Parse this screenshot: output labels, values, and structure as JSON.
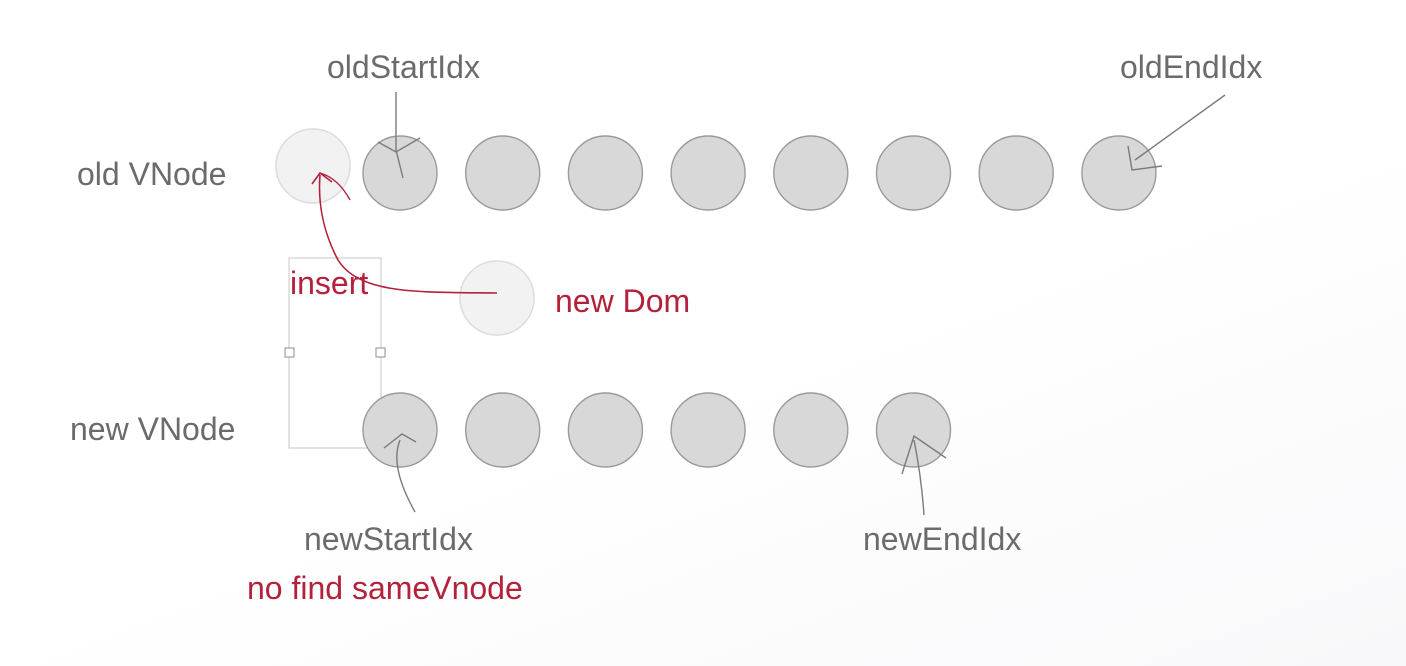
{
  "labels": {
    "old_vnode": "old VNode",
    "new_vnode": "new VNode",
    "old_start_idx": "oldStartIdx",
    "old_end_idx": "oldEndIdx",
    "new_start_idx": "newStartIdx",
    "new_end_idx": "newEndIdx",
    "insert": "insert",
    "new_dom": "new Dom",
    "no_find": "no find sameVnode"
  },
  "old_vnodes": {
    "count": 8
  },
  "new_vnodes": {
    "count": 6
  },
  "colors": {
    "node_fill": "#d8d8d8",
    "node_stroke": "#9a9a9a",
    "ghost_fill": "#f2f2f2",
    "ghost_stroke": "#dcdcdc",
    "pointer": "#7a7a7a",
    "accent_red": "#b3213b",
    "label_gray": "#6b6b6b"
  }
}
